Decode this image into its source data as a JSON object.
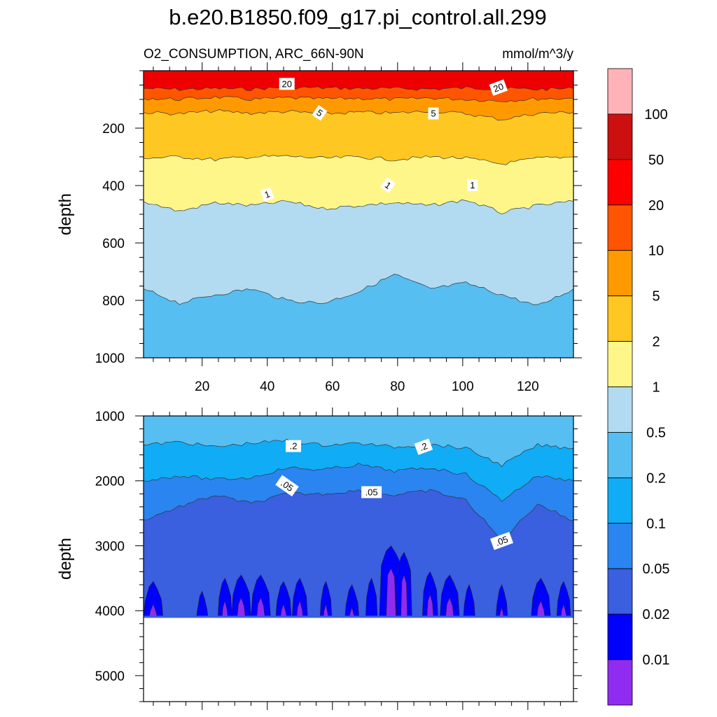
{
  "chart_data": {
    "type": "contour",
    "title": "b.e20.B1850.f09_g17.pi_control.all.299",
    "variable_label": "O2_CONSUMPTION, ARC_66N-90N",
    "units_label": "mmol/m^3/y",
    "x_range": [
      2,
      134
    ],
    "x_ticks": [
      20,
      40,
      60,
      80,
      100,
      120
    ],
    "panels": [
      {
        "name": "upper",
        "ylabel": "depth",
        "ylim": [
          0,
          1000
        ],
        "y_ticks": [
          200,
          400,
          600,
          800,
          1000
        ],
        "bands": [
          {
            "color": "#ee0000",
            "top": [
              0,
              0,
              0,
              0,
              0,
              0,
              0,
              0,
              0,
              0,
              0,
              0,
              0
            ],
            "bottom": [
              62,
              65,
              62,
              64,
              58,
              60,
              62,
              62,
              64,
              60,
              62,
              65,
              62
            ]
          },
          {
            "color": "#ff5500",
            "top": [
              62,
              65,
              62,
              64,
              58,
              60,
              62,
              62,
              64,
              60,
              62,
              65,
              62
            ],
            "bottom": [
              96,
              100,
              92,
              100,
              95,
              98,
              96,
              100,
              95,
              100,
              105,
              98,
              96
            ]
          },
          {
            "color": "#ff9900",
            "top": [
              96,
              100,
              92,
              100,
              95,
              98,
              96,
              100,
              95,
              100,
              105,
              98,
              96
            ],
            "bottom": [
              145,
              150,
              140,
              148,
              142,
              150,
              145,
              148,
              140,
              150,
              170,
              148,
              145
            ]
          },
          {
            "color": "#ffc721",
            "top": [
              145,
              150,
              140,
              148,
              142,
              150,
              145,
              148,
              140,
              150,
              170,
              148,
              145
            ],
            "bottom": [
              305,
              300,
              310,
              300,
              298,
              305,
              300,
              310,
              300,
              305,
              325,
              305,
              300
            ]
          },
          {
            "color": "#fff68a",
            "top": [
              305,
              300,
              310,
              300,
              298,
              305,
              300,
              310,
              300,
              305,
              325,
              305,
              300
            ],
            "bottom": [
              455,
              490,
              460,
              470,
              455,
              480,
              470,
              460,
              470,
              450,
              495,
              470,
              455
            ]
          },
          {
            "color": "#b2dbf2",
            "top": [
              455,
              490,
              460,
              470,
              455,
              480,
              470,
              460,
              470,
              450,
              495,
              470,
              455
            ],
            "bottom": [
              760,
              810,
              780,
              760,
              800,
              810,
              770,
              710,
              760,
              740,
              780,
              820,
              760
            ]
          },
          {
            "color": "#56bef0",
            "top": [
              760,
              810,
              780,
              760,
              800,
              810,
              770,
              710,
              760,
              740,
              780,
              820,
              760
            ],
            "bottom": [
              1000,
              1000,
              1000,
              1000,
              1000,
              1000,
              1000,
              1000,
              1000,
              1000,
              1000,
              1000,
              1000
            ]
          }
        ],
        "contour_labels": [
          {
            "text": "20",
            "x": 46,
            "y": 47
          },
          {
            "text": "20",
            "x": 111,
            "y": 60
          },
          {
            "text": "5",
            "x": 56,
            "y": 148
          },
          {
            "text": "5",
            "x": 91,
            "y": 150
          },
          {
            "text": "1",
            "x": 40,
            "y": 432
          },
          {
            "text": "1",
            "x": 77,
            "y": 400
          },
          {
            "text": "1",
            "x": 103,
            "y": 400
          }
        ]
      },
      {
        "name": "lower",
        "ylabel": "depth",
        "ylim": [
          1000,
          5400
        ],
        "y_ticks": [
          1000,
          2000,
          3000,
          4000,
          5000
        ],
        "data_bottom": 4110,
        "bands": [
          {
            "color": "#56bef0",
            "top": [
              1000,
              1000,
              1000,
              1000,
              1000,
              1000,
              1000,
              1000,
              1000,
              1000,
              1000,
              1000,
              1000
            ],
            "bottom": [
              1450,
              1400,
              1480,
              1420,
              1380,
              1450,
              1420,
              1480,
              1440,
              1500,
              1760,
              1450,
              1500
            ]
          },
          {
            "color": "#10acf5",
            "top": [
              1450,
              1400,
              1480,
              1420,
              1380,
              1450,
              1420,
              1480,
              1440,
              1500,
              1760,
              1450,
              1500
            ],
            "bottom": [
              2000,
              1920,
              1980,
              1950,
              1800,
              1830,
              1750,
              1850,
              1800,
              1900,
              2300,
              1920,
              2000
            ]
          },
          {
            "color": "#2a85f0",
            "top": [
              2000,
              1920,
              1980,
              1950,
              1800,
              1830,
              1750,
              1850,
              1800,
              1900,
              2300,
              1920,
              2000
            ],
            "bottom": [
              2600,
              2400,
              2220,
              2350,
              2200,
              2200,
              2150,
              2220,
              2150,
              2300,
              2920,
              2350,
              2620
            ]
          },
          {
            "color": "#3a5fdf",
            "top": [
              2600,
              2400,
              2220,
              2350,
              2200,
              2200,
              2150,
              2220,
              2150,
              2300,
              2920,
              2350,
              2620
            ],
            "bottom": [
              4110,
              4110,
              4110,
              4110,
              4110,
              4110,
              4110,
              4110,
              4110,
              4110,
              4110,
              4110,
              4110
            ]
          }
        ],
        "deep_patches": [
          {
            "x": 5,
            "top": 3550,
            "w": 2.5,
            "inner": true
          },
          {
            "x": 20,
            "top": 3700,
            "w": 1.5,
            "inner": false
          },
          {
            "x": 27,
            "top": 3500,
            "w": 1.8,
            "inner": true
          },
          {
            "x": 32,
            "top": 3450,
            "w": 2.5,
            "inner": true
          },
          {
            "x": 38,
            "top": 3450,
            "w": 2.5,
            "inner": true
          },
          {
            "x": 45,
            "top": 3550,
            "w": 2,
            "inner": true
          },
          {
            "x": 50,
            "top": 3500,
            "w": 2,
            "inner": true
          },
          {
            "x": 58,
            "top": 3550,
            "w": 1.5,
            "inner": true
          },
          {
            "x": 66,
            "top": 3600,
            "w": 1.8,
            "inner": true
          },
          {
            "x": 72,
            "top": 3500,
            "w": 1.5,
            "inner": false
          },
          {
            "x": 78,
            "top": 3000,
            "w": 3,
            "inner": true
          },
          {
            "x": 82,
            "top": 3100,
            "w": 2,
            "inner": true
          },
          {
            "x": 90,
            "top": 3400,
            "w": 2,
            "inner": true
          },
          {
            "x": 96,
            "top": 3450,
            "w": 2.5,
            "inner": true
          },
          {
            "x": 102,
            "top": 3600,
            "w": 1.5,
            "inner": false
          },
          {
            "x": 112,
            "top": 3600,
            "w": 1.5,
            "inner": true
          },
          {
            "x": 124,
            "top": 3500,
            "w": 2.5,
            "inner": true
          },
          {
            "x": 131,
            "top": 3550,
            "w": 1.8,
            "inner": true
          }
        ],
        "contour_labels": [
          {
            "text": ".2",
            "x": 48,
            "y": 1470
          },
          {
            "text": ".2",
            "x": 88,
            "y": 1480
          },
          {
            "text": ".05",
            "x": 46,
            "y": 2080
          },
          {
            "text": ".05",
            "x": 72,
            "y": 2180
          },
          {
            "text": ".05",
            "x": 112,
            "y": 2930
          }
        ]
      }
    ],
    "colorbar": {
      "colors": [
        "#ffb3b8",
        "#cc1010",
        "#ff0000",
        "#ff5500",
        "#ff9900",
        "#ffc721",
        "#fff68a",
        "#b2dbf2",
        "#56bef0",
        "#10acf5",
        "#2a85f0",
        "#3a5fdf",
        "#0000ff",
        "#8f2cf0"
      ],
      "labels": [
        "100",
        "50",
        "20",
        "10",
        "5",
        "2",
        "1",
        "0.5",
        "0.2",
        "0.1",
        "0.05",
        "0.02",
        "0.01"
      ]
    }
  }
}
